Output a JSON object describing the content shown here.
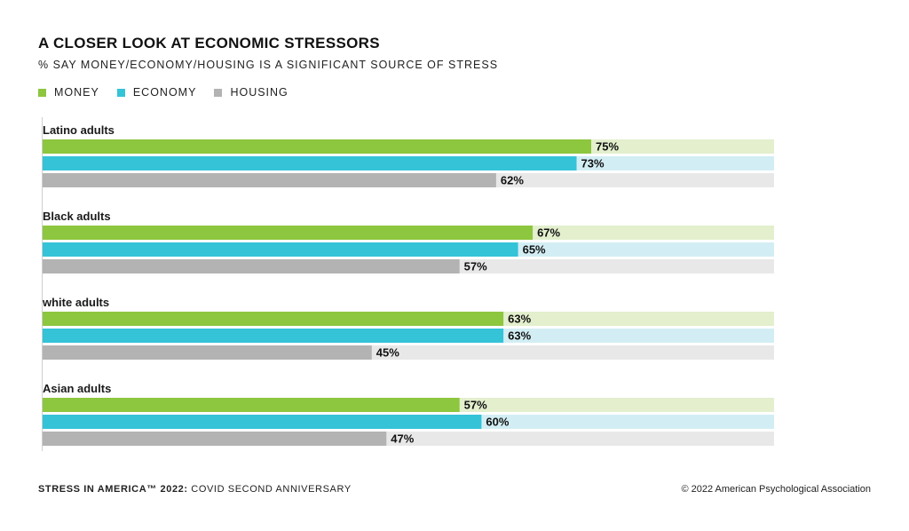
{
  "title": "A CLOSER LOOK AT ECONOMIC STRESSORS",
  "subtitle": "% SAY MONEY/ECONOMY/HOUSING IS A SIGNIFICANT SOURCE OF STRESS",
  "legend": [
    {
      "label": "MONEY",
      "color": "#8dc63f"
    },
    {
      "label": "ECONOMY",
      "color": "#35c3d8"
    },
    {
      "label": "HOUSING",
      "color": "#b3b3b3"
    }
  ],
  "chart_data": {
    "type": "bar",
    "orientation": "horizontal",
    "title": "A CLOSER LOOK AT ECONOMIC STRESSORS",
    "subtitle": "% SAY MONEY/ECONOMY/HOUSING IS A SIGNIFICANT SOURCE OF STRESS",
    "categories": [
      "Latino adults",
      "Black adults",
      "white adults",
      "Asian adults"
    ],
    "series": [
      {
        "name": "MONEY",
        "color": "#8dc63f",
        "track_color": "#e3efcd",
        "values": [
          75,
          67,
          63,
          57
        ],
        "labels": [
          "75%",
          "67%",
          "63%",
          "57%"
        ]
      },
      {
        "name": "ECONOMY",
        "color": "#35c3d8",
        "track_color": "#d2eef4",
        "values": [
          73,
          65,
          63,
          60
        ],
        "labels": [
          "73%",
          "65%",
          "63%",
          "60%"
        ]
      },
      {
        "name": "HOUSING",
        "color": "#b3b3b3",
        "track_color": "#e8e8e8",
        "values": [
          62,
          57,
          45,
          47
        ],
        "labels": [
          "62%",
          "57%",
          "45%",
          "47%"
        ]
      }
    ],
    "xlim": [
      0,
      100
    ],
    "grid": false,
    "legend_position": "top-left"
  },
  "footer": {
    "left_bold": "STRESS IN AMERICA™ 2022:",
    "left_regular": " COVID SECOND ANNIVERSARY",
    "right": "© 2022 American Psychological Association"
  }
}
